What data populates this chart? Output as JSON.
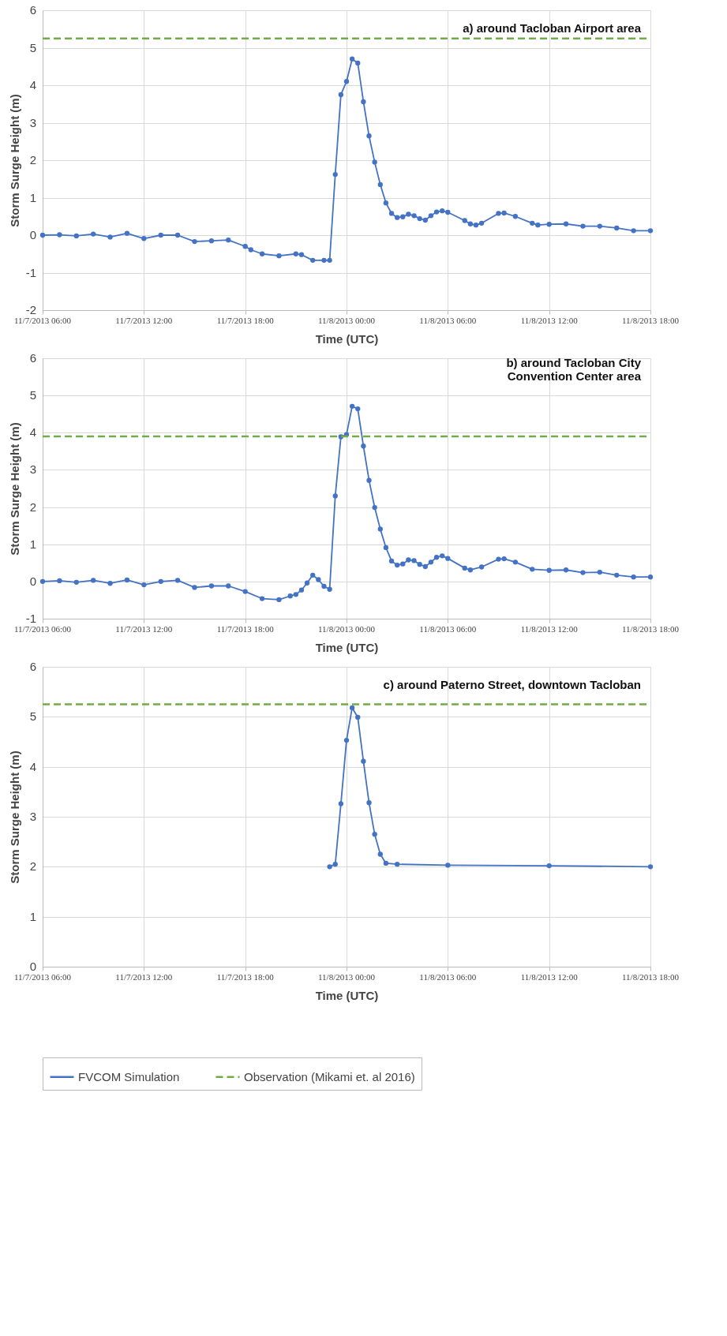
{
  "chart_data": [
    {
      "type": "line",
      "title": "a) around Tacloban Airport area",
      "xlabel": "Time (UTC)",
      "ylabel": "Storm Surge Height (m)",
      "xlim": [
        "2013-11-07T06:00",
        "2013-11-08T18:00"
      ],
      "xticks": [
        {
          "value": "2013-11-07T06:00",
          "label": "11/7/2013 06:00"
        },
        {
          "value": "2013-11-07T12:00",
          "label": "11/7/2013 12:00"
        },
        {
          "value": "2013-11-07T18:00",
          "label": "11/7/2013 18:00"
        },
        {
          "value": "2013-11-08T00:00",
          "label": "11/8/2013 00:00"
        },
        {
          "value": "2013-11-08T06:00",
          "label": "11/8/2013 06:00"
        },
        {
          "value": "2013-11-08T12:00",
          "label": "11/8/2013 12:00"
        },
        {
          "value": "2013-11-08T18:00",
          "label": "11/8/2013 18:00"
        }
      ],
      "ylim": [
        -2,
        6
      ],
      "yticks": [
        -2,
        -1,
        0,
        1,
        2,
        3,
        4,
        5,
        6
      ],
      "grid": true,
      "series": [
        {
          "color": "#4472c4",
          "marker": "circle",
          "line_style": "solid",
          "x": [
            "2013-11-07T06:00",
            "2013-11-07T07:00",
            "2013-11-07T08:00",
            "2013-11-07T09:00",
            "2013-11-07T10:00",
            "2013-11-07T11:00",
            "2013-11-07T12:00",
            "2013-11-07T13:00",
            "2013-11-07T14:00",
            "2013-11-07T15:00",
            "2013-11-07T16:00",
            "2013-11-07T17:00",
            "2013-11-07T18:00",
            "2013-11-07T18:20",
            "2013-11-07T19:00",
            "2013-11-07T20:00",
            "2013-11-07T21:00",
            "2013-11-07T21:20",
            "2013-11-07T22:00",
            "2013-11-07T22:40",
            "2013-11-07T23:00",
            "2013-11-07T23:20",
            "2013-11-07T23:40",
            "2013-11-08T00:00",
            "2013-11-08T00:20",
            "2013-11-08T00:40",
            "2013-11-08T01:00",
            "2013-11-08T01:20",
            "2013-11-08T01:40",
            "2013-11-08T02:00",
            "2013-11-08T02:20",
            "2013-11-08T02:40",
            "2013-11-08T03:00",
            "2013-11-08T03:20",
            "2013-11-08T03:40",
            "2013-11-08T04:00",
            "2013-11-08T04:20",
            "2013-11-08T04:40",
            "2013-11-08T05:00",
            "2013-11-08T05:20",
            "2013-11-08T05:40",
            "2013-11-08T06:00",
            "2013-11-08T07:00",
            "2013-11-08T07:20",
            "2013-11-08T07:40",
            "2013-11-08T08:00",
            "2013-11-08T09:00",
            "2013-11-08T09:20",
            "2013-11-08T10:00",
            "2013-11-08T11:00",
            "2013-11-08T11:20",
            "2013-11-08T12:00",
            "2013-11-08T13:00",
            "2013-11-08T14:00",
            "2013-11-08T15:00",
            "2013-11-08T16:00",
            "2013-11-08T17:00",
            "2013-11-08T18:00"
          ],
          "values": [
            0.0,
            0.01,
            -0.02,
            0.03,
            -0.05,
            0.05,
            -0.09,
            0.0,
            0.0,
            -0.17,
            -0.15,
            -0.13,
            -0.3,
            -0.39,
            -0.5,
            -0.55,
            -0.5,
            -0.52,
            -0.67,
            -0.67,
            -0.67,
            1.62,
            3.75,
            4.1,
            4.7,
            4.59,
            3.56,
            2.65,
            1.95,
            1.35,
            0.86,
            0.58,
            0.47,
            0.49,
            0.56,
            0.52,
            0.44,
            0.4,
            0.52,
            0.62,
            0.65,
            0.61,
            0.39,
            0.3,
            0.27,
            0.32,
            0.58,
            0.59,
            0.5,
            0.32,
            0.27,
            0.29,
            0.3,
            0.24,
            0.24,
            0.19,
            0.12,
            0.12
          ]
        },
        {
          "color": "#70ad47",
          "marker": "none",
          "line_style": "dashed",
          "x": [
            "2013-11-07T06:00",
            "2013-11-08T18:00"
          ],
          "values": [
            5.25,
            5.25
          ]
        }
      ]
    },
    {
      "type": "line",
      "title": "b) around Tacloban City\nConvention Center area",
      "xlabel": "Time (UTC)",
      "ylabel": "Storm Surge Height (m)",
      "xlim": [
        "2013-11-07T06:00",
        "2013-11-08T18:00"
      ],
      "xticks": [
        {
          "value": "2013-11-07T06:00",
          "label": "11/7/2013 06:00"
        },
        {
          "value": "2013-11-07T12:00",
          "label": "11/7/2013 12:00"
        },
        {
          "value": "2013-11-07T18:00",
          "label": "11/7/2013 18:00"
        },
        {
          "value": "2013-11-08T00:00",
          "label": "11/8/2013 00:00"
        },
        {
          "value": "2013-11-08T06:00",
          "label": "11/8/2013 06:00"
        },
        {
          "value": "2013-11-08T12:00",
          "label": "11/8/2013 12:00"
        },
        {
          "value": "2013-11-08T18:00",
          "label": "11/8/2013 18:00"
        }
      ],
      "ylim": [
        -1,
        6
      ],
      "yticks": [
        -1,
        0,
        1,
        2,
        3,
        4,
        5,
        6
      ],
      "grid": true,
      "series": [
        {
          "color": "#4472c4",
          "marker": "circle",
          "line_style": "solid",
          "x": [
            "2013-11-07T06:00",
            "2013-11-07T07:00",
            "2013-11-07T08:00",
            "2013-11-07T09:00",
            "2013-11-07T10:00",
            "2013-11-07T11:00",
            "2013-11-07T12:00",
            "2013-11-07T13:00",
            "2013-11-07T14:00",
            "2013-11-07T15:00",
            "2013-11-07T16:00",
            "2013-11-07T17:00",
            "2013-11-07T18:00",
            "2013-11-07T19:00",
            "2013-11-07T20:00",
            "2013-11-07T20:40",
            "2013-11-07T21:00",
            "2013-11-07T21:20",
            "2013-11-07T21:40",
            "2013-11-07T22:00",
            "2013-11-07T22:20",
            "2013-11-07T22:40",
            "2013-11-07T23:00",
            "2013-11-07T23:20",
            "2013-11-07T23:40",
            "2013-11-08T00:00",
            "2013-11-08T00:20",
            "2013-11-08T00:40",
            "2013-11-08T01:00",
            "2013-11-08T01:20",
            "2013-11-08T01:40",
            "2013-11-08T02:00",
            "2013-11-08T02:20",
            "2013-11-08T02:40",
            "2013-11-08T03:00",
            "2013-11-08T03:20",
            "2013-11-08T03:40",
            "2013-11-08T04:00",
            "2013-11-08T04:20",
            "2013-11-08T04:40",
            "2013-11-08T05:00",
            "2013-11-08T05:20",
            "2013-11-08T05:40",
            "2013-11-08T06:00",
            "2013-11-08T07:00",
            "2013-11-08T07:20",
            "2013-11-08T08:00",
            "2013-11-08T09:00",
            "2013-11-08T09:20",
            "2013-11-08T10:00",
            "2013-11-08T11:00",
            "2013-11-08T12:00",
            "2013-11-08T13:00",
            "2013-11-08T14:00",
            "2013-11-08T15:00",
            "2013-11-08T16:00",
            "2013-11-08T17:00",
            "2013-11-08T18:00"
          ],
          "values": [
            0.0,
            0.02,
            -0.02,
            0.03,
            -0.05,
            0.04,
            -0.09,
            0.0,
            0.03,
            -0.16,
            -0.12,
            -0.12,
            -0.27,
            -0.46,
            -0.49,
            -0.39,
            -0.35,
            -0.23,
            -0.04,
            0.17,
            0.05,
            -0.13,
            -0.21,
            2.3,
            3.89,
            3.95,
            4.71,
            4.64,
            3.64,
            2.72,
            1.99,
            1.41,
            0.91,
            0.55,
            0.44,
            0.47,
            0.58,
            0.56,
            0.46,
            0.4,
            0.52,
            0.65,
            0.69,
            0.62,
            0.36,
            0.31,
            0.39,
            0.6,
            0.61,
            0.52,
            0.33,
            0.3,
            0.31,
            0.24,
            0.25,
            0.17,
            0.12,
            0.12
          ]
        },
        {
          "color": "#70ad47",
          "marker": "none",
          "line_style": "dashed",
          "x": [
            "2013-11-07T06:00",
            "2013-11-08T18:00"
          ],
          "values": [
            3.9,
            3.9
          ]
        }
      ]
    },
    {
      "type": "line",
      "title": "c) around Paterno Street, downtown Tacloban",
      "xlabel": "Time (UTC)",
      "ylabel": "Storm Surge Height (m)",
      "xlim": [
        "2013-11-07T06:00",
        "2013-11-08T18:00"
      ],
      "xticks": [
        {
          "value": "2013-11-07T06:00",
          "label": "11/7/2013 06:00"
        },
        {
          "value": "2013-11-07T12:00",
          "label": "11/7/2013 12:00"
        },
        {
          "value": "2013-11-07T18:00",
          "label": "11/7/2013 18:00"
        },
        {
          "value": "2013-11-08T00:00",
          "label": "11/8/2013 00:00"
        },
        {
          "value": "2013-11-08T06:00",
          "label": "11/8/2013 06:00"
        },
        {
          "value": "2013-11-08T12:00",
          "label": "11/8/2013 12:00"
        },
        {
          "value": "2013-11-08T18:00",
          "label": "11/8/2013 18:00"
        }
      ],
      "ylim": [
        0,
        6
      ],
      "yticks": [
        0,
        1,
        2,
        3,
        4,
        5,
        6
      ],
      "grid": true,
      "legend": "bottom",
      "series": [
        {
          "name": "FVCOM Simulation",
          "color": "#4472c4",
          "marker": "circle",
          "line_style": "solid",
          "x": [
            "2013-11-07T23:00",
            "2013-11-07T23:20",
            "2013-11-07T23:40",
            "2013-11-08T00:00",
            "2013-11-08T00:20",
            "2013-11-08T00:40",
            "2013-11-08T01:00",
            "2013-11-08T01:20",
            "2013-11-08T01:40",
            "2013-11-08T02:00",
            "2013-11-08T02:20",
            "2013-11-08T03:00",
            "2013-11-08T06:00",
            "2013-11-08T12:00",
            "2013-11-08T18:00"
          ],
          "values": [
            2.0,
            2.05,
            3.26,
            4.53,
            5.18,
            4.99,
            4.11,
            3.28,
            2.65,
            2.25,
            2.07,
            2.05,
            2.03,
            2.02,
            2.0
          ]
        },
        {
          "name": "Observation (Mikami et. al 2016)",
          "color": "#70ad47",
          "marker": "none",
          "line_style": "dashed",
          "x": [
            "2013-11-07T06:00",
            "2013-11-08T18:00"
          ],
          "values": [
            5.25,
            5.25
          ]
        }
      ]
    }
  ]
}
